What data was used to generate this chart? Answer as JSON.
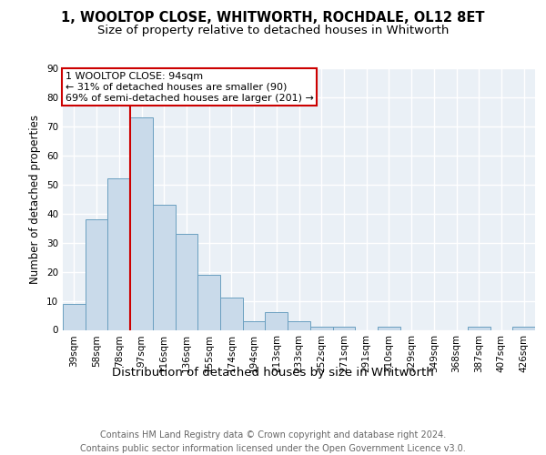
{
  "title": "1, WOOLTOP CLOSE, WHITWORTH, ROCHDALE, OL12 8ET",
  "subtitle": "Size of property relative to detached houses in Whitworth",
  "xlabel": "Distribution of detached houses by size in Whitworth",
  "ylabel": "Number of detached properties",
  "bar_color": "#c9daea",
  "bar_edge_color": "#6a9fc0",
  "background_color": "#eaf0f6",
  "grid_color": "#ffffff",
  "categories": [
    "39sqm",
    "58sqm",
    "78sqm",
    "97sqm",
    "116sqm",
    "136sqm",
    "155sqm",
    "174sqm",
    "194sqm",
    "213sqm",
    "233sqm",
    "252sqm",
    "271sqm",
    "291sqm",
    "310sqm",
    "329sqm",
    "349sqm",
    "368sqm",
    "387sqm",
    "407sqm",
    "426sqm"
  ],
  "values": [
    9,
    38,
    52,
    73,
    43,
    33,
    19,
    11,
    3,
    6,
    3,
    1,
    1,
    0,
    1,
    0,
    0,
    0,
    1,
    0,
    1
  ],
  "annotation_text": "1 WOOLTOP CLOSE: 94sqm\n← 31% of detached houses are smaller (90)\n69% of semi-detached houses are larger (201) →",
  "annotation_box_color": "#ffffff",
  "annotation_box_edge_color": "#cc0000",
  "vline_color": "#cc0000",
  "vline_bin_index": 3,
  "ylim": [
    0,
    90
  ],
  "yticks": [
    0,
    10,
    20,
    30,
    40,
    50,
    60,
    70,
    80,
    90
  ],
  "footer_text": "Contains HM Land Registry data © Crown copyright and database right 2024.\nContains public sector information licensed under the Open Government Licence v3.0.",
  "title_fontsize": 10.5,
  "subtitle_fontsize": 9.5,
  "xlabel_fontsize": 9.5,
  "ylabel_fontsize": 8.5,
  "tick_fontsize": 7.5,
  "annotation_fontsize": 8,
  "footer_fontsize": 7
}
